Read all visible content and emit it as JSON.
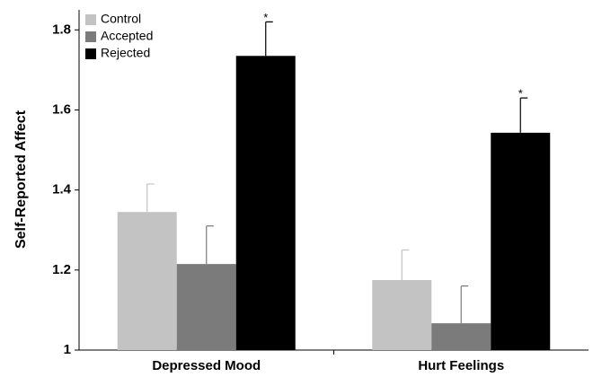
{
  "chart_data": {
    "type": "bar",
    "ylabel": "Self-Reported Affect",
    "categories": [
      "Depressed Mood",
      "Hurt Feelings"
    ],
    "series": [
      {
        "name": "Control",
        "color": "#c3c3c3",
        "values": [
          1.345,
          1.175
        ],
        "errors": [
          0.07,
          0.075
        ]
      },
      {
        "name": "Accepted",
        "color": "#7b7b7b",
        "values": [
          1.215,
          1.067
        ],
        "errors": [
          0.095,
          0.093
        ]
      },
      {
        "name": "Rejected",
        "color": "#000000",
        "values": [
          1.735,
          1.543
        ],
        "errors": [
          0.085,
          0.087
        ]
      }
    ],
    "annotations": [
      {
        "text": "*",
        "category": "Depressed Mood",
        "series": "Rejected"
      },
      {
        "text": "*",
        "category": "Hurt Feelings",
        "series": "Rejected"
      }
    ],
    "ylim": [
      1,
      1.85
    ],
    "yticks": [
      1,
      1.2,
      1.4,
      1.6,
      1.8
    ],
    "legend": "upper left"
  }
}
